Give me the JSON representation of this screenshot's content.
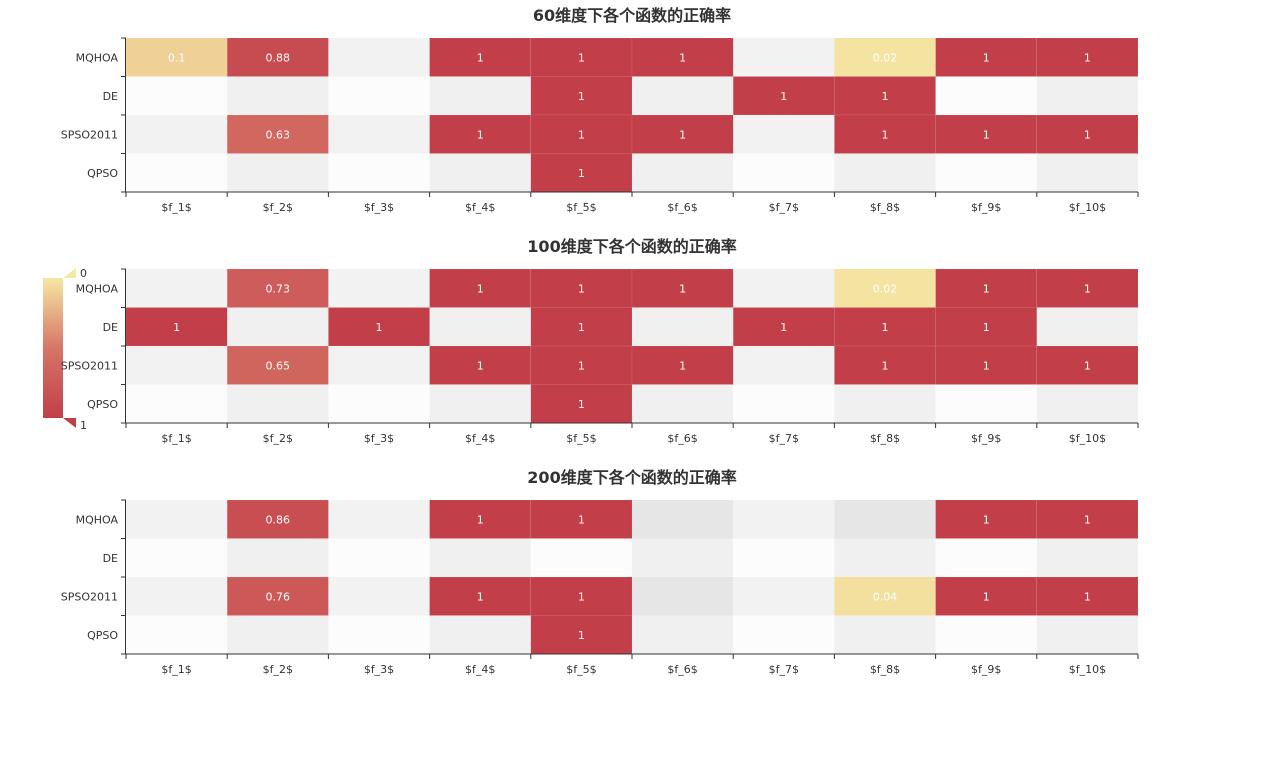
{
  "chart_data": [
    {
      "type": "heatmap",
      "title": "60维度下各个函数的正确率",
      "categories": [
        "$f_1$",
        "$f_2$",
        "$f_3$",
        "$f_4$",
        "$f_5$",
        "$f_6$",
        "$f_7$",
        "$f_8$",
        "$f_9$",
        "$f_10$"
      ],
      "rows": [
        "MQHOA",
        "DE",
        "SPSO2011",
        "QPSO"
      ],
      "values": [
        [
          0.1,
          0.88,
          null,
          1,
          1,
          1,
          null,
          0.02,
          1,
          1
        ],
        [
          null,
          null,
          null,
          null,
          1,
          null,
          1,
          1,
          null,
          null
        ],
        [
          null,
          0.63,
          null,
          1,
          1,
          1,
          null,
          1,
          1,
          1
        ],
        [
          null,
          null,
          null,
          null,
          1,
          null,
          null,
          null,
          null,
          null
        ]
      ]
    },
    {
      "type": "heatmap",
      "title": "100维度下各个函数的正确率",
      "categories": [
        "$f_1$",
        "$f_2$",
        "$f_3$",
        "$f_4$",
        "$f_5$",
        "$f_6$",
        "$f_7$",
        "$f_8$",
        "$f_9$",
        "$f_10$"
      ],
      "rows": [
        "MQHOA",
        "DE",
        "SPSO2011",
        "QPSO"
      ],
      "values": [
        [
          null,
          0.73,
          null,
          1,
          1,
          1,
          null,
          0.02,
          1,
          1
        ],
        [
          1,
          null,
          1,
          null,
          1,
          null,
          1,
          1,
          1,
          null
        ],
        [
          null,
          0.65,
          null,
          1,
          1,
          1,
          null,
          1,
          1,
          1
        ],
        [
          null,
          null,
          null,
          null,
          1,
          null,
          null,
          null,
          null,
          null
        ]
      ]
    },
    {
      "type": "heatmap",
      "title": "200维度下各个函数的正确率",
      "categories": [
        "$f_1$",
        "$f_2$",
        "$f_3$",
        "$f_4$",
        "$f_5$",
        "$f_6$",
        "$f_7$",
        "$f_8$",
        "$f_9$",
        "$f_10$"
      ],
      "rows": [
        "MQHOA",
        "DE",
        "SPSO2011",
        "QPSO"
      ],
      "values": [
        [
          null,
          0.86,
          null,
          1,
          1,
          null,
          null,
          null,
          1,
          1
        ],
        [
          null,
          null,
          null,
          null,
          null,
          null,
          null,
          null,
          null,
          null
        ],
        [
          null,
          0.76,
          null,
          1,
          1,
          null,
          null,
          0.04,
          1,
          1
        ],
        [
          null,
          null,
          null,
          null,
          1,
          null,
          null,
          null,
          null,
          null
        ]
      ]
    }
  ],
  "visual_map": {
    "min": 0,
    "max": 1,
    "min_label": "0",
    "max_label": "1",
    "color_low": "#f5e8a3",
    "color_mid": "#d67567",
    "color_high": "#c23f4a"
  },
  "colors": {
    "odd_column_light": "#fcfcfc",
    "odd_column_dark": "#f2f2f2",
    "even_column_light": "#f0f0f0",
    "even_column_dark": "#e6e6e6",
    "axis": "#333333",
    "label": "#333333",
    "cell_text": "#ffffff"
  }
}
